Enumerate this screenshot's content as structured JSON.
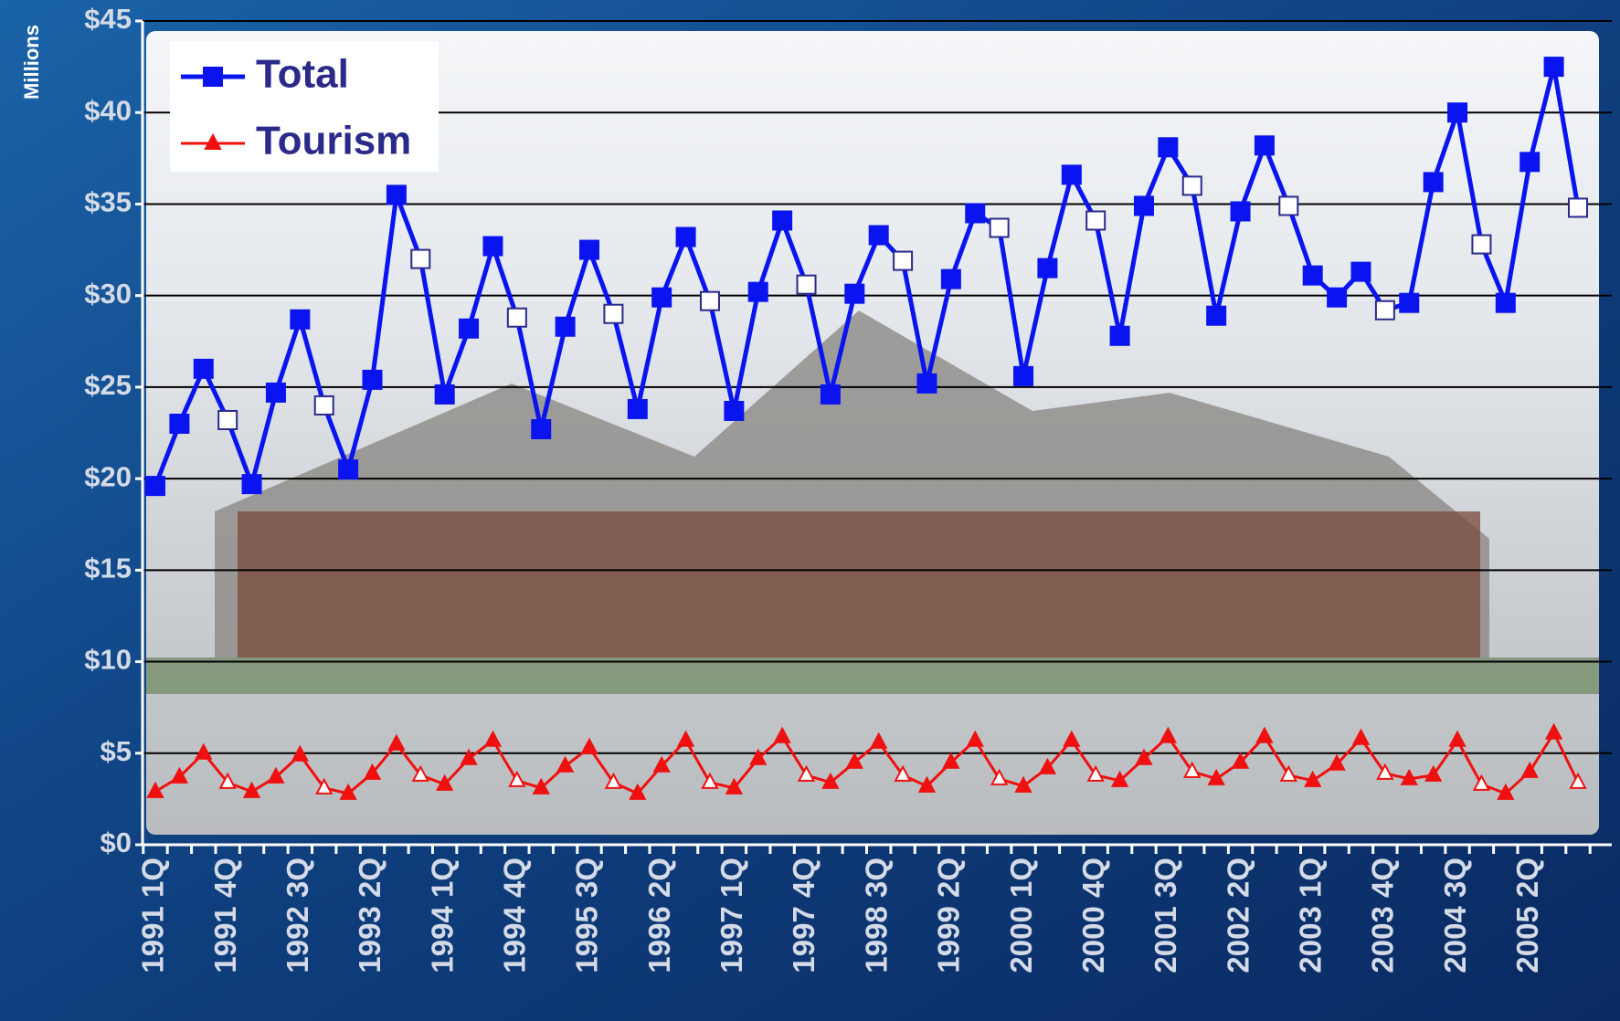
{
  "chart_data": {
    "type": "line",
    "y_axis_label": "Millions",
    "categories": [
      "1991 1Q",
      null,
      null,
      "1991 4Q",
      null,
      null,
      "1992 3Q",
      null,
      null,
      "1993 2Q",
      null,
      null,
      "1994 1Q",
      null,
      null,
      "1994 4Q",
      null,
      null,
      "1995 3Q",
      null,
      null,
      "1996 2Q",
      null,
      null,
      "1997 1Q",
      null,
      null,
      "1997 4Q",
      null,
      null,
      "1998 3Q",
      null,
      null,
      "1999 2Q",
      null,
      null,
      "2000 1Q",
      null,
      null,
      "2000 4Q",
      null,
      null,
      "2001 3Q",
      null,
      null,
      "2002 2Q",
      null,
      null,
      "2003 1Q",
      null,
      null,
      "2003 4Q",
      null,
      null,
      "2004 3Q",
      null,
      null,
      "2005 2Q",
      null,
      null
    ],
    "series": [
      {
        "name": "Total",
        "color": "#0a14f0",
        "marker": "square",
        "values": [
          19.6,
          23,
          26,
          23.2,
          19.7,
          24.7,
          28.7,
          24,
          20.5,
          25.4,
          35.5,
          32,
          24.6,
          28.2,
          32.7,
          28.8,
          22.7,
          28.3,
          32.5,
          29,
          23.8,
          29.9,
          33.2,
          29.7,
          23.7,
          30.2,
          34.1,
          30.6,
          24.6,
          30.1,
          33.3,
          31.9,
          25.2,
          30.9,
          34.5,
          33.7,
          25.6,
          31.5,
          36.6,
          34.1,
          27.8,
          34.9,
          38.1,
          36,
          28.9,
          34.6,
          38.2,
          34.9,
          31.1,
          29.9,
          31.3,
          29.2,
          29.6,
          36.2,
          40,
          32.8,
          29.6,
          37.3,
          42.5,
          34.8
        ]
      },
      {
        "name": "Tourism",
        "color": "#f01010",
        "marker": "triangle",
        "values": [
          2.9,
          3.7,
          5.0,
          3.4,
          2.9,
          3.7,
          4.9,
          3.1,
          2.8,
          3.9,
          5.5,
          3.8,
          3.3,
          4.7,
          5.7,
          3.5,
          3.1,
          4.3,
          5.3,
          3.4,
          2.8,
          4.3,
          5.7,
          3.4,
          3.1,
          4.7,
          5.9,
          3.8,
          3.4,
          4.5,
          5.6,
          3.8,
          3.2,
          4.5,
          5.7,
          3.6,
          3.2,
          4.2,
          5.7,
          3.8,
          3.5,
          4.7,
          5.9,
          4.0,
          3.6,
          4.5,
          5.9,
          3.8,
          3.5,
          4.4,
          5.8,
          3.9,
          3.6,
          3.8,
          5.7,
          3.3,
          2.8,
          4.0,
          6.1,
          3.4
        ]
      }
    ],
    "ylim": [
      0,
      45
    ],
    "yticks": [
      {
        "value": 0,
        "label": "$0"
      },
      {
        "value": 5,
        "label": "$5"
      },
      {
        "value": 10,
        "label": "$10"
      },
      {
        "value": 15,
        "label": "$15"
      },
      {
        "value": 20,
        "label": "$20"
      },
      {
        "value": 25,
        "label": "$25"
      },
      {
        "value": 30,
        "label": "$30"
      },
      {
        "value": 35,
        "label": "$35"
      },
      {
        "value": 40,
        "label": "$40"
      },
      {
        "value": 45,
        "label": "$45"
      }
    ],
    "grid": true,
    "legend": "upper left"
  }
}
